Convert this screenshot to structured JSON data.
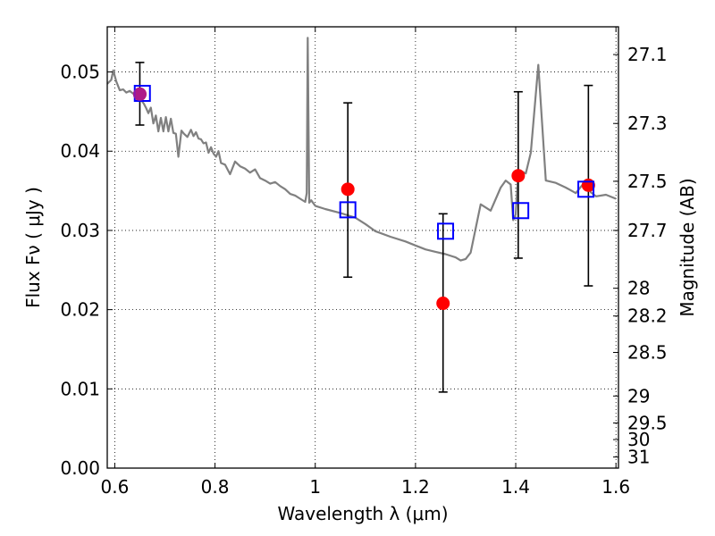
{
  "chart_data": {
    "type": "scatter",
    "xlabel": "Wavelength  λ (μm)",
    "ylabel": "Flux  Fν  ( μJy )",
    "y2label": "Magnitude (AB)",
    "xlim": [
      0.585,
      1.605
    ],
    "ylim": [
      0.0,
      0.0557
    ],
    "x_ticks": [
      0.6,
      0.8,
      1.0,
      1.2,
      1.4,
      1.6
    ],
    "x_tick_labels": [
      "0.6",
      "0.8",
      "1",
      "1.2",
      "1.4",
      "1.6"
    ],
    "y_ticks": [
      0.0,
      0.01,
      0.02,
      0.03,
      0.04,
      0.05
    ],
    "y_tick_labels": [
      "0.00",
      "0.01",
      "0.02",
      "0.03",
      "0.04",
      "0.05"
    ],
    "y2_ticks": [
      {
        "flux": 0.0522,
        "label": "27.1"
      },
      {
        "flux": 0.0435,
        "label": "27.3"
      },
      {
        "flux": 0.0362,
        "label": "27.5"
      },
      {
        "flux": 0.03,
        "label": "27.7"
      },
      {
        "flux": 0.0227,
        "label": "28"
      },
      {
        "flux": 0.0192,
        "label": "28.2"
      },
      {
        "flux": 0.0146,
        "label": "28.5"
      },
      {
        "flux": 0.0091,
        "label": "29"
      },
      {
        "flux": 0.0057,
        "label": "29.5"
      },
      {
        "flux": 0.0036,
        "label": "30"
      },
      {
        "flux": 0.0014,
        "label": "31"
      }
    ],
    "grid": true,
    "series": [
      {
        "kind": "line",
        "color": "#808080",
        "x": [
          0.585,
          0.593,
          0.597,
          0.603,
          0.61,
          0.617,
          0.623,
          0.63,
          0.638,
          0.645,
          0.652,
          0.658,
          0.663,
          0.667,
          0.672,
          0.677,
          0.682,
          0.687,
          0.692,
          0.697,
          0.702,
          0.707,
          0.712,
          0.717,
          0.722,
          0.727,
          0.733,
          0.738,
          0.745,
          0.752,
          0.757,
          0.762,
          0.767,
          0.772,
          0.777,
          0.782,
          0.787,
          0.792,
          0.797,
          0.802,
          0.807,
          0.812,
          0.82,
          0.83,
          0.84,
          0.85,
          0.86,
          0.87,
          0.88,
          0.89,
          0.9,
          0.91,
          0.92,
          0.93,
          0.94,
          0.95,
          0.96,
          0.97,
          0.98,
          0.983,
          0.985,
          0.988,
          0.992,
          1.0,
          1.02,
          1.05,
          1.08,
          1.1,
          1.12,
          1.15,
          1.18,
          1.2,
          1.22,
          1.24,
          1.26,
          1.28,
          1.29,
          1.3,
          1.31,
          1.33,
          1.35,
          1.37,
          1.38,
          1.39,
          1.395,
          1.4,
          1.405,
          1.41,
          1.42,
          1.43,
          1.445,
          1.46,
          1.48,
          1.5,
          1.52,
          1.54,
          1.55,
          1.56,
          1.58,
          1.6
        ],
        "y": [
          0.0485,
          0.049,
          0.0502,
          0.0488,
          0.0477,
          0.0478,
          0.0474,
          0.0476,
          0.0472,
          0.0469,
          0.0465,
          0.046,
          0.0454,
          0.0448,
          0.0455,
          0.0435,
          0.0445,
          0.0425,
          0.0442,
          0.0425,
          0.0443,
          0.0425,
          0.0441,
          0.0423,
          0.0422,
          0.0393,
          0.0426,
          0.0422,
          0.0418,
          0.0427,
          0.0419,
          0.0424,
          0.0416,
          0.0415,
          0.041,
          0.0411,
          0.0398,
          0.0405,
          0.0397,
          0.0393,
          0.04,
          0.0385,
          0.0383,
          0.0371,
          0.0387,
          0.0381,
          0.0378,
          0.0373,
          0.0377,
          0.0366,
          0.0363,
          0.0359,
          0.0361,
          0.0356,
          0.0352,
          0.0346,
          0.0344,
          0.034,
          0.0336,
          0.0347,
          0.0543,
          0.0335,
          0.0338,
          0.0331,
          0.0327,
          0.0322,
          0.0316,
          0.0308,
          0.0299,
          0.0292,
          0.0286,
          0.0281,
          0.0276,
          0.0273,
          0.027,
          0.0266,
          0.0262,
          0.0264,
          0.0272,
          0.0333,
          0.0325,
          0.0354,
          0.0363,
          0.0358,
          0.0313,
          0.032,
          0.0373,
          0.0375,
          0.0372,
          0.0398,
          0.0509,
          0.0363,
          0.036,
          0.0354,
          0.0347,
          0.0363,
          0.0348,
          0.0343,
          0.0345,
          0.034
        ]
      },
      {
        "kind": "errorbar",
        "color": "#000000",
        "x": [
          0.65,
          1.065,
          1.255,
          1.405,
          1.545
        ],
        "y_low": [
          0.0433,
          0.0241,
          0.0096,
          0.0265,
          0.023
        ],
        "y_high": [
          0.0512,
          0.0461,
          0.0321,
          0.0475,
          0.0483
        ]
      },
      {
        "kind": "markers",
        "marker": "circle",
        "color": "#ff0000",
        "x": [
          0.65,
          1.065,
          1.255,
          1.405,
          1.545
        ],
        "y": [
          0.0472,
          0.0352,
          0.0208,
          0.0369,
          0.0357
        ]
      },
      {
        "kind": "markers",
        "marker": "square-open",
        "color": "#0000ff",
        "x": [
          0.655,
          1.065,
          1.26,
          1.41,
          1.54
        ],
        "y": [
          0.0473,
          0.0326,
          0.0299,
          0.0325,
          0.0352
        ]
      }
    ]
  }
}
